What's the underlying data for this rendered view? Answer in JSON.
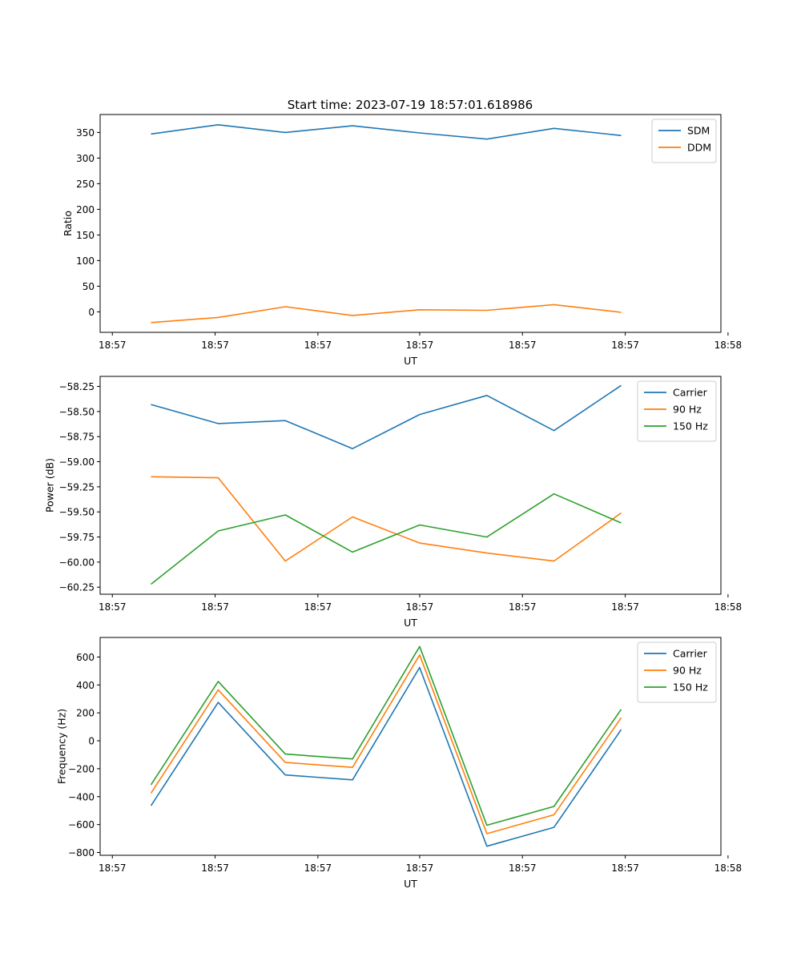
{
  "figure_title": "Start time: 2023-07-19 18:57:01.618986",
  "chart_data": [
    {
      "type": "line",
      "title": "Start time: 2023-07-19 18:57:01.618986",
      "xlabel": "UT",
      "ylabel": "Ratio",
      "x": [
        0.5,
        1.16,
        1.82,
        2.48,
        3.14,
        3.8,
        4.46,
        5.12
      ],
      "xlim": [
        0,
        6.1
      ],
      "x_ticks": [
        0.12,
        1.13,
        2.14,
        3.14,
        4.15,
        5.16,
        6.17
      ],
      "x_tick_labels": [
        "18:57",
        "18:57",
        "18:57",
        "18:57",
        "18:57",
        "18:57",
        "18:58"
      ],
      "ylim": [
        -40,
        385
      ],
      "y_ticks": [
        0,
        50,
        100,
        150,
        200,
        250,
        300,
        350
      ],
      "y_tick_labels": [
        "0",
        "50",
        "100",
        "150",
        "200",
        "250",
        "300",
        "350"
      ],
      "legend_position": "top-right",
      "series": [
        {
          "name": "SDM",
          "color": "#1f77b4",
          "values": [
            347,
            365,
            350,
            363,
            349,
            337,
            358,
            344
          ]
        },
        {
          "name": "DDM",
          "color": "#ff7f0e",
          "values": [
            -21,
            -11,
            10,
            -7,
            4,
            3,
            14,
            -1
          ]
        }
      ]
    },
    {
      "type": "line",
      "title": "",
      "xlabel": "UT",
      "ylabel": "Power (dB)",
      "x": [
        0.5,
        1.16,
        1.82,
        2.48,
        3.14,
        3.8,
        4.46,
        5.12
      ],
      "xlim": [
        0,
        6.1
      ],
      "x_ticks": [
        0.12,
        1.13,
        2.14,
        3.14,
        4.15,
        5.16,
        6.17
      ],
      "x_tick_labels": [
        "18:57",
        "18:57",
        "18:57",
        "18:57",
        "18:57",
        "18:57",
        "18:58"
      ],
      "ylim": [
        -60.32,
        -58.15
      ],
      "y_ticks": [
        -60.25,
        -60.0,
        -59.75,
        -59.5,
        -59.25,
        -59.0,
        -58.75,
        -58.5,
        -58.25
      ],
      "y_tick_labels": [
        "−60.25",
        "−60.00",
        "−59.75",
        "−59.50",
        "−59.25",
        "−59.00",
        "−58.75",
        "−58.50",
        "−58.25"
      ],
      "legend_position": "top-right",
      "series": [
        {
          "name": "Carrier",
          "color": "#1f77b4",
          "values": [
            -58.43,
            -58.62,
            -58.59,
            -58.87,
            -58.53,
            -58.34,
            -58.69,
            -58.24
          ]
        },
        {
          "name": "90 Hz",
          "color": "#ff7f0e",
          "values": [
            -59.15,
            -59.16,
            -59.99,
            -59.55,
            -59.81,
            -59.91,
            -59.99,
            -59.51
          ]
        },
        {
          "name": "150 Hz",
          "color": "#2ca02c",
          "values": [
            -60.22,
            -59.69,
            -59.53,
            -59.9,
            -59.63,
            -59.75,
            -59.32,
            -59.61
          ]
        }
      ]
    },
    {
      "type": "line",
      "title": "",
      "xlabel": "UT",
      "ylabel": "Frequency (Hz)",
      "x": [
        0.5,
        1.16,
        1.82,
        2.48,
        3.14,
        3.8,
        4.46,
        5.12
      ],
      "xlim": [
        0,
        6.1
      ],
      "x_ticks": [
        0.12,
        1.13,
        2.14,
        3.14,
        4.15,
        5.16,
        6.17
      ],
      "x_tick_labels": [
        "18:57",
        "18:57",
        "18:57",
        "18:57",
        "18:57",
        "18:57",
        "18:58"
      ],
      "ylim": [
        -820,
        740
      ],
      "y_ticks": [
        -800,
        -600,
        -400,
        -200,
        0,
        200,
        400,
        600
      ],
      "y_tick_labels": [
        "−800",
        "−600",
        "−400",
        "−200",
        "0",
        "200",
        "400",
        "600"
      ],
      "legend_position": "top-right",
      "series": [
        {
          "name": "Carrier",
          "color": "#1f77b4",
          "values": [
            -465,
            275,
            -245,
            -280,
            525,
            -755,
            -620,
            80
          ]
        },
        {
          "name": "90 Hz",
          "color": "#ff7f0e",
          "values": [
            -375,
            365,
            -155,
            -190,
            615,
            -665,
            -530,
            165
          ]
        },
        {
          "name": "150 Hz",
          "color": "#2ca02c",
          "values": [
            -315,
            425,
            -95,
            -130,
            675,
            -605,
            -470,
            225
          ]
        }
      ]
    }
  ]
}
